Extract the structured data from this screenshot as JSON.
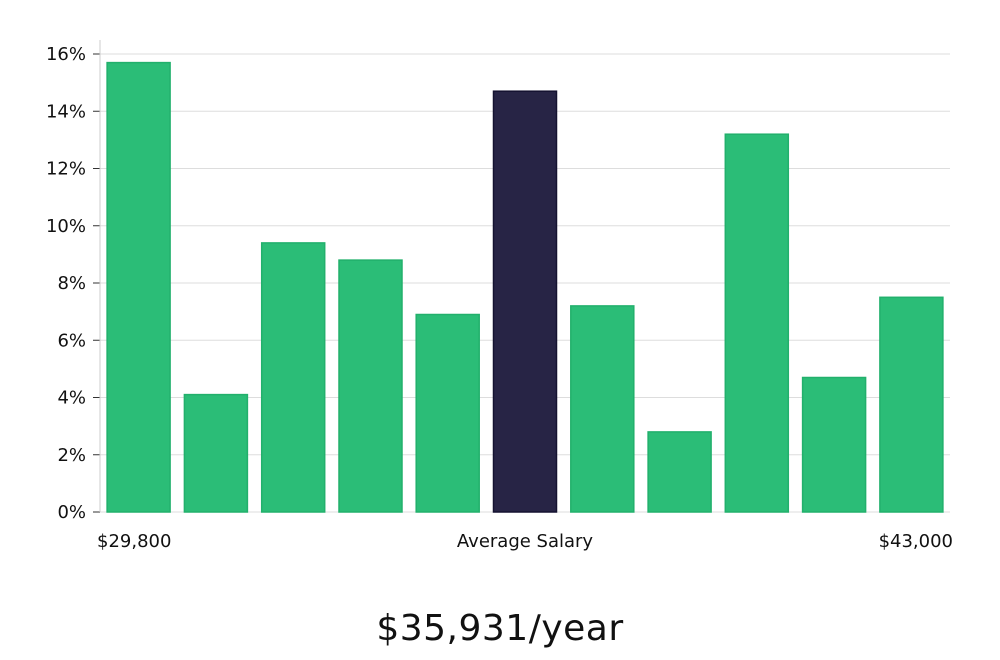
{
  "chart_data": {
    "type": "bar",
    "title": "",
    "xlabel": "",
    "ylabel": "",
    "ylim": [
      0,
      16
    ],
    "y_ticks": [
      0,
      2,
      4,
      6,
      8,
      10,
      12,
      14,
      16
    ],
    "y_tick_format": "percent",
    "grid": "horizontal",
    "values": [
      15.7,
      4.1,
      9.4,
      8.8,
      6.9,
      14.7,
      7.2,
      2.8,
      13.2,
      4.7,
      7.5
    ],
    "highlight_index": 5,
    "x_labels": {
      "left": "$29,800",
      "center": "Average Salary",
      "right": "$43,000"
    },
    "colors": {
      "bar": "#2bbd77",
      "highlight": "#272445",
      "grid": "#dddddd",
      "axis": "#cccccc"
    }
  },
  "salary": {
    "value": "$35,931/year"
  }
}
